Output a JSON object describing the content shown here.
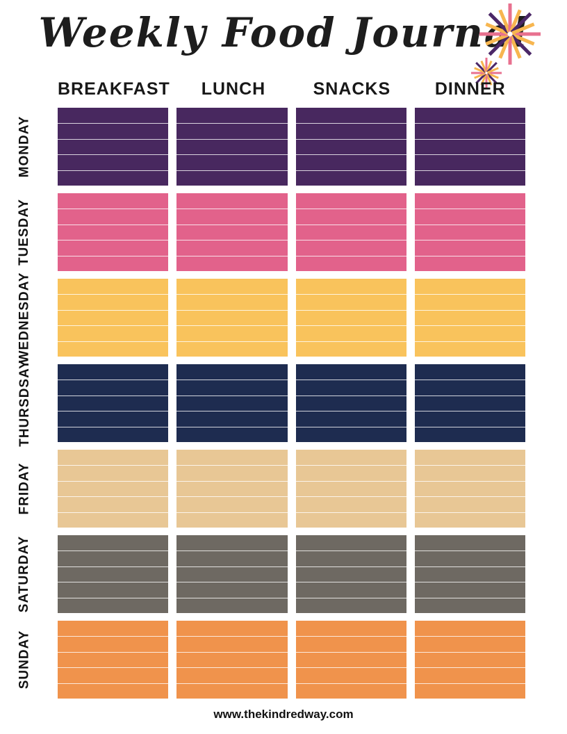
{
  "page": {
    "title": "Weekly Food Journal",
    "footer_url": "www.thekindredway.com"
  },
  "table": {
    "columns": [
      "BREAKFAST",
      "LUNCH",
      "SNACKS",
      "DINNER"
    ],
    "days": [
      {
        "label": "MONDAY",
        "color": "#48285f"
      },
      {
        "label": "TUESDAY",
        "color": "#e2628b"
      },
      {
        "label": "WEDNESDAY",
        "color": "#f9c35c"
      },
      {
        "label": "THURSDSAY",
        "color": "#1e2c50"
      },
      {
        "label": "FRIDAY",
        "color": "#e8c795"
      },
      {
        "label": "SATURDAY",
        "color": "#6e6962"
      },
      {
        "label": "SUNDAY",
        "color": "#f0934c"
      }
    ],
    "lines_per_cell": 4,
    "line_color": "rgba(255,255,255,0.8)"
  },
  "decoration": {
    "starburst_colors": {
      "pink": "#e8718f",
      "purple": "#4b2767",
      "yellow": "#f7b64f"
    }
  }
}
